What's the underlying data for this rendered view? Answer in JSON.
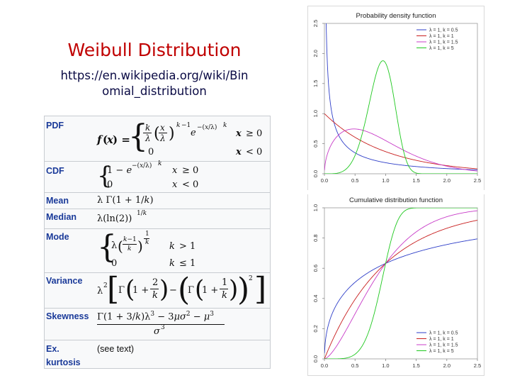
{
  "slide": {
    "title": "Weibull Distribution",
    "url_line1": "https://en.wikipedia.org/wiki/Bin",
    "url_line2": "omial_distribution"
  },
  "infobox": {
    "rows": [
      {
        "label": "PDF"
      },
      {
        "label": "CDF"
      },
      {
        "label": "Mean"
      },
      {
        "label": "Median"
      },
      {
        "label": "Mode"
      },
      {
        "label": "Variance"
      },
      {
        "label": "Skewness"
      },
      {
        "label": "Ex. kurtosis",
        "label1": "Ex.",
        "label2": "kurtosis",
        "value": "(see text)"
      }
    ]
  },
  "colors": {
    "title": "#c00000",
    "series": [
      "#2e3ec8",
      "#c81e1e",
      "#c83cc8",
      "#1ec81e"
    ]
  },
  "chart_data": [
    {
      "type": "line",
      "title": "Probability density function",
      "xlim": [
        0,
        2.5
      ],
      "ylim": [
        0,
        2.5
      ],
      "xticks": [
        "0.0",
        "0.5",
        "1.0",
        "1.5",
        "2.0",
        "2.5"
      ],
      "yticks": [
        "0.0",
        "0.5",
        "1.0",
        "1.5",
        "2.0",
        "2.5"
      ],
      "legend_position": "top-right",
      "series": [
        {
          "name": "λ = 1, k = 0.5",
          "lambda": 1,
          "k": 0.5,
          "color": "#2e3ec8"
        },
        {
          "name": "λ = 1, k = 1",
          "lambda": 1,
          "k": 1,
          "color": "#c81e1e"
        },
        {
          "name": "λ = 1, k = 1.5",
          "lambda": 1,
          "k": 1.5,
          "color": "#c83cc8"
        },
        {
          "name": "λ = 1, k = 5",
          "lambda": 1,
          "k": 5,
          "color": "#1ec81e"
        }
      ]
    },
    {
      "type": "line",
      "title": "Cumulative distribution function",
      "xlim": [
        0,
        2.5
      ],
      "ylim": [
        0,
        1
      ],
      "xticks": [
        "0.0",
        "0.5",
        "1.0",
        "1.5",
        "2.0",
        "2.5"
      ],
      "yticks": [
        "0.0",
        "0.2",
        "0.4",
        "0.6",
        "0.8",
        "1.0"
      ],
      "legend_position": "bottom-right",
      "series": [
        {
          "name": "λ = 1, k = 0.5",
          "lambda": 1,
          "k": 0.5,
          "color": "#2e3ec8"
        },
        {
          "name": "λ = 1, k = 1",
          "lambda": 1,
          "k": 1,
          "color": "#c81e1e"
        },
        {
          "name": "λ = 1, k = 1.5",
          "lambda": 1,
          "k": 1.5,
          "color": "#c83cc8"
        },
        {
          "name": "λ = 1, k = 5",
          "lambda": 1,
          "k": 5,
          "color": "#1ec81e"
        }
      ]
    }
  ]
}
